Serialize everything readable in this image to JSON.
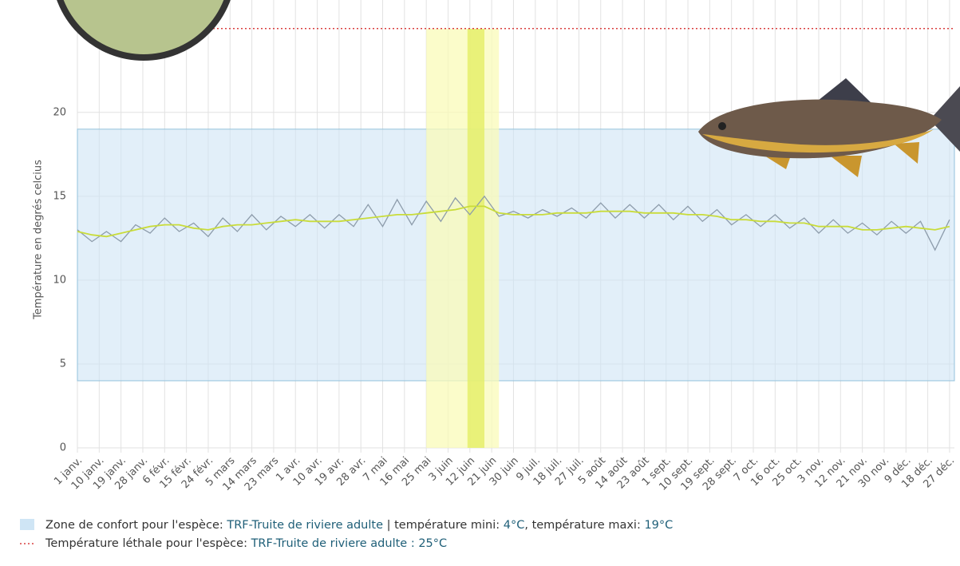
{
  "chart_data": {
    "type": "line",
    "y_label": "Température en degrés celcius",
    "xlim": [
      0,
      362
    ],
    "ylim": [
      0,
      26.7
    ],
    "yticks": [
      0,
      5,
      10,
      15,
      20
    ],
    "grid": true,
    "xticks": [
      {
        "value": 0,
        "label": "1 janv."
      },
      {
        "value": 9,
        "label": "10 janv."
      },
      {
        "value": 18,
        "label": "19 janv."
      },
      {
        "value": 27,
        "label": "28 janv."
      },
      {
        "value": 36,
        "label": "6 févr."
      },
      {
        "value": 45,
        "label": "15 févr."
      },
      {
        "value": 54,
        "label": "24 févr."
      },
      {
        "value": 63,
        "label": "5 mars"
      },
      {
        "value": 72,
        "label": "14 mars"
      },
      {
        "value": 81,
        "label": "23 mars"
      },
      {
        "value": 90,
        "label": "1 avr."
      },
      {
        "value": 99,
        "label": "10 avr."
      },
      {
        "value": 108,
        "label": "19 avr."
      },
      {
        "value": 117,
        "label": "28 avr."
      },
      {
        "value": 126,
        "label": "7 mai"
      },
      {
        "value": 135,
        "label": "16 mai"
      },
      {
        "value": 144,
        "label": "25 mai"
      },
      {
        "value": 153,
        "label": "3 juin"
      },
      {
        "value": 162,
        "label": "12 juin"
      },
      {
        "value": 171,
        "label": "21 juin"
      },
      {
        "value": 180,
        "label": "30 juin"
      },
      {
        "value": 189,
        "label": "9 juil."
      },
      {
        "value": 198,
        "label": "18 juil."
      },
      {
        "value": 207,
        "label": "27 juil."
      },
      {
        "value": 216,
        "label": "5 août"
      },
      {
        "value": 225,
        "label": "14 août"
      },
      {
        "value": 234,
        "label": "23 août"
      },
      {
        "value": 243,
        "label": "1 sept."
      },
      {
        "value": 252,
        "label": "10 sept."
      },
      {
        "value": 261,
        "label": "19 sept."
      },
      {
        "value": 270,
        "label": "28 sept."
      },
      {
        "value": 279,
        "label": "7 oct."
      },
      {
        "value": 288,
        "label": "16 oct."
      },
      {
        "value": 297,
        "label": "25 oct."
      },
      {
        "value": 306,
        "label": "3 nov."
      },
      {
        "value": 315,
        "label": "12 nov."
      },
      {
        "value": 324,
        "label": "21 nov."
      },
      {
        "value": 333,
        "label": "30 nov."
      },
      {
        "value": 342,
        "label": "9 déc."
      },
      {
        "value": 351,
        "label": "18 déc."
      },
      {
        "value": 360,
        "label": "27 déc."
      }
    ],
    "x": [
      0,
      6,
      12,
      18,
      24,
      30,
      36,
      42,
      48,
      54,
      60,
      66,
      72,
      78,
      84,
      90,
      96,
      102,
      108,
      114,
      120,
      126,
      132,
      138,
      144,
      150,
      156,
      162,
      168,
      174,
      180,
      186,
      192,
      198,
      204,
      210,
      216,
      222,
      228,
      234,
      240,
      246,
      252,
      258,
      264,
      270,
      276,
      282,
      288,
      294,
      300,
      306,
      312,
      318,
      324,
      330,
      336,
      342,
      348,
      354,
      360
    ],
    "series": [
      {
        "color": "#8d9cab",
        "values": [
          13.0,
          12.3,
          12.9,
          12.3,
          13.3,
          12.8,
          13.7,
          12.9,
          13.4,
          12.6,
          13.7,
          12.9,
          13.9,
          13.0,
          13.8,
          13.2,
          13.9,
          13.1,
          13.9,
          13.2,
          14.5,
          13.2,
          14.8,
          13.3,
          14.7,
          13.5,
          14.9,
          13.9,
          15.0,
          13.8,
          14.1,
          13.7,
          14.2,
          13.8,
          14.3,
          13.7,
          14.6,
          13.7,
          14.5,
          13.7,
          14.5,
          13.6,
          14.4,
          13.5,
          14.2,
          13.3,
          13.9,
          13.2,
          13.9,
          13.1,
          13.7,
          12.8,
          13.6,
          12.8,
          13.4,
          12.7,
          13.5,
          12.8,
          13.5,
          11.8,
          13.6
        ]
      },
      {
        "color": "#c9dc3a",
        "values": [
          12.9,
          12.7,
          12.6,
          12.8,
          13.0,
          13.2,
          13.3,
          13.3,
          13.1,
          13.0,
          13.2,
          13.3,
          13.3,
          13.4,
          13.5,
          13.6,
          13.5,
          13.5,
          13.5,
          13.6,
          13.7,
          13.8,
          13.9,
          13.9,
          14.0,
          14.1,
          14.2,
          14.4,
          14.4,
          14.0,
          13.9,
          13.9,
          13.9,
          14.0,
          14.0,
          14.0,
          14.1,
          14.1,
          14.1,
          14.0,
          14.0,
          14.0,
          13.9,
          13.9,
          13.8,
          13.6,
          13.6,
          13.5,
          13.5,
          13.4,
          13.4,
          13.2,
          13.2,
          13.2,
          13.0,
          13.0,
          13.1,
          13.2,
          13.1,
          13.0,
          13.2
        ]
      }
    ],
    "comfort_zone": {
      "values": [
        4,
        19
      ],
      "value_labels": [
        "4°C",
        "19°C"
      ],
      "color": "#cfe5f5"
    },
    "lethal": {
      "value": 25,
      "value_label": "25°C",
      "color": "#d94040"
    },
    "highlights": [
      {
        "from": 144,
        "to": 174,
        "color": "#f9fbb8"
      },
      {
        "from": 161,
        "to": 168,
        "color": "#e3ee5e"
      }
    ],
    "legend": {
      "comfort_text": "Zone de confort pour l'espèce: ",
      "species": "TRF-Truite de riviere adulte",
      "mini_text": " | température mini: ",
      "maxi_text": ", température maxi: ",
      "lethal_text": "Température léthale pour l'espèce: ",
      "lethal_sep": " : "
    }
  }
}
